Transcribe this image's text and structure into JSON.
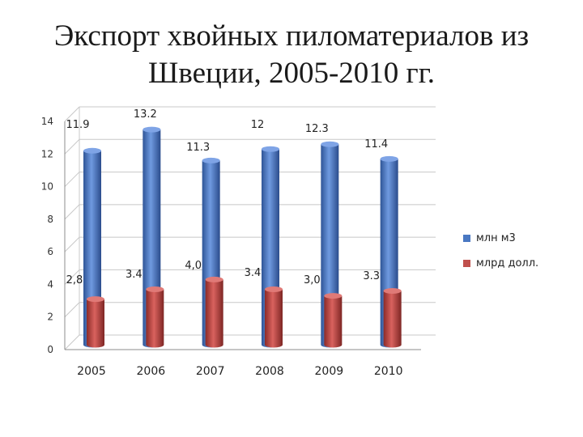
{
  "title_lines": [
    "Экспорт хвойных пиломатериалов из",
    "Швеции, 2005-2010 гг."
  ],
  "colors": {
    "series1": "#4a78c2",
    "series2": "#c0504d",
    "grid": "#c8c8c8",
    "axis": "#8c8c8c"
  },
  "chart_data": {
    "type": "bar",
    "categories": [
      "2005",
      "2006",
      "2007",
      "2008",
      "2009",
      "2010"
    ],
    "series": [
      {
        "name": "млн м3",
        "values": [
          11.9,
          13.2,
          11.3,
          12,
          12.3,
          11.4
        ],
        "labels": [
          "11.9",
          "13.2",
          "11.3",
          "12",
          "12.3",
          "11.4"
        ]
      },
      {
        "name": "млрд долл.",
        "values": [
          2.8,
          3.4,
          4.0,
          3.4,
          3.0,
          3.3
        ],
        "labels": [
          "2,8",
          "3.4",
          "4,0",
          "3.4",
          "3,0",
          "3.3"
        ]
      }
    ],
    "ylim": [
      0,
      14
    ],
    "yticks": [
      "0",
      "2",
      "4",
      "6",
      "8",
      "10",
      "12",
      "14"
    ],
    "grid": true,
    "legend": "right"
  }
}
